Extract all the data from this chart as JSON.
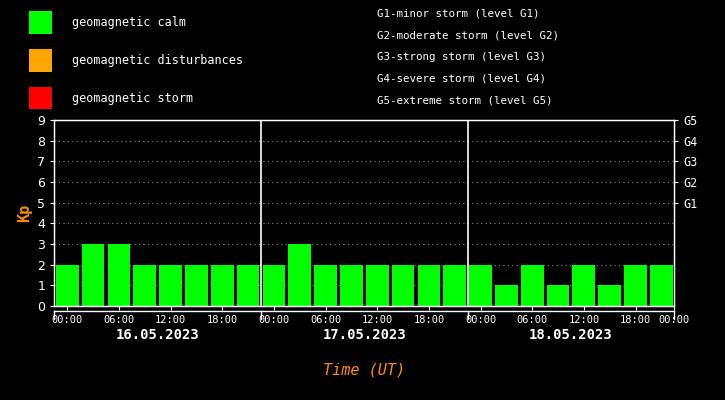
{
  "background_color": "#000000",
  "bar_color_calm": "#00ff00",
  "bar_color_disturbance": "#ffa500",
  "bar_color_storm": "#ff0000",
  "axis_color": "#ffffff",
  "ylabel_color": "#ff8c00",
  "xlabel_color": "#ff8c00",
  "right_label_color": "#ffffff",
  "ylabel": "Kp",
  "xlabel": "Time (UT)",
  "ylim": [
    0,
    9
  ],
  "yticks": [
    0,
    1,
    2,
    3,
    4,
    5,
    6,
    7,
    8,
    9
  ],
  "right_labels": [
    [
      "G1",
      5
    ],
    [
      "G2",
      6
    ],
    [
      "G3",
      7
    ],
    [
      "G4",
      8
    ],
    [
      "G5",
      9
    ]
  ],
  "days": [
    "16.05.2023",
    "17.05.2023",
    "18.05.2023"
  ],
  "values": [
    [
      2,
      3,
      3,
      2,
      2,
      2,
      2,
      2
    ],
    [
      2,
      3,
      2,
      2,
      2,
      2,
      2,
      2
    ],
    [
      2,
      1,
      2,
      1,
      2,
      1,
      2,
      2
    ]
  ],
  "legend_items": [
    {
      "label": "geomagnetic calm",
      "color": "#00ff00"
    },
    {
      "label": "geomagnetic disturbances",
      "color": "#ffa500"
    },
    {
      "label": "geomagnetic storm",
      "color": "#ff0000"
    }
  ],
  "storm_level_text": [
    "G1-minor storm (level G1)",
    "G2-moderate storm (level G2)",
    "G3-strong storm (level G3)",
    "G4-severe storm (level G4)",
    "G5-extreme storm (level G5)"
  ],
  "separator_color": "#ffffff",
  "font_family": "monospace"
}
